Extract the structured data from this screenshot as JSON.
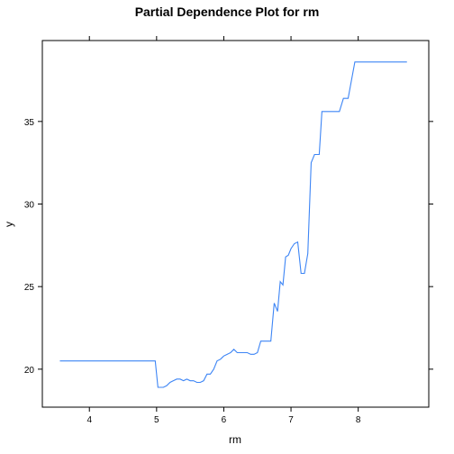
{
  "chart_data": {
    "type": "line",
    "title": "Partial Dependence Plot for rm",
    "xlabel": "rm",
    "ylabel": "y",
    "xlim": [
      3.3,
      9.05
    ],
    "ylim": [
      17.7,
      39.9
    ],
    "xticks": [
      4,
      5,
      6,
      7,
      8
    ],
    "yticks": [
      20,
      25,
      30,
      35
    ],
    "grid": false,
    "line_color": "#3d85f5",
    "series": [
      {
        "x": [
          3.561,
          4.0,
          4.5,
          4.98,
          5.02,
          5.1,
          5.15,
          5.2,
          5.25,
          5.3,
          5.35,
          5.4,
          5.45,
          5.5,
          5.55,
          5.6,
          5.65,
          5.7,
          5.75,
          5.8,
          5.85,
          5.9,
          5.95,
          6.0,
          6.05,
          6.1,
          6.15,
          6.2,
          6.25,
          6.3,
          6.35,
          6.4,
          6.45,
          6.5,
          6.55,
          6.6,
          6.65,
          6.7,
          6.75,
          6.8,
          6.84,
          6.88,
          6.92,
          6.96,
          7.0,
          7.05,
          7.1,
          7.15,
          7.2,
          7.25,
          7.3,
          7.35,
          7.38,
          7.42,
          7.46,
          7.5,
          7.55,
          7.6,
          7.68,
          7.72,
          7.78,
          7.85,
          7.95,
          8.05,
          8.1,
          8.15,
          8.25,
          8.3,
          8.4,
          8.5,
          8.725
        ],
        "y": [
          20.5,
          20.5,
          20.5,
          20.5,
          18.9,
          18.9,
          19.0,
          19.2,
          19.3,
          19.4,
          19.4,
          19.3,
          19.4,
          19.3,
          19.3,
          19.2,
          19.2,
          19.3,
          19.7,
          19.7,
          20.0,
          20.5,
          20.6,
          20.8,
          20.9,
          21.0,
          21.2,
          21.0,
          21.0,
          21.0,
          21.0,
          20.9,
          20.9,
          21.0,
          21.7,
          21.7,
          21.7,
          21.7,
          24.0,
          23.5,
          25.3,
          25.1,
          26.8,
          26.9,
          27.3,
          27.6,
          27.7,
          25.8,
          25.8,
          27.0,
          32.5,
          33.0,
          33.0,
          33.0,
          35.6,
          35.6,
          35.6,
          35.6,
          35.6,
          35.6,
          36.4,
          36.4,
          38.6,
          38.6,
          38.6,
          38.6,
          38.6,
          38.6,
          38.6,
          38.6,
          38.6
        ]
      }
    ]
  }
}
